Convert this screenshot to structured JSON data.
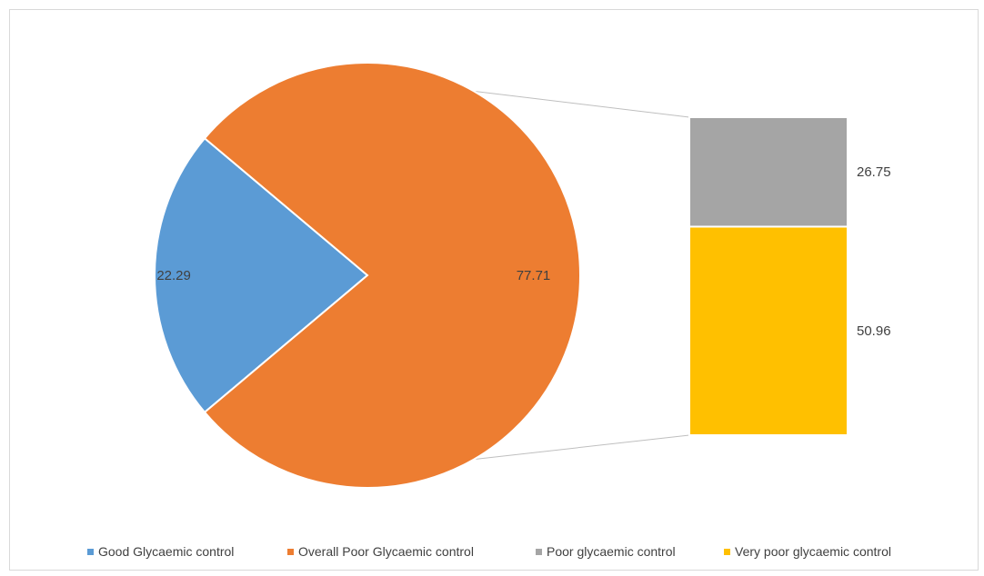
{
  "chart_data": {
    "type": "pie",
    "subtype": "bar-of-pie",
    "title": "",
    "pie": {
      "slices": [
        {
          "name": "Good Glycaemic control",
          "value": 22.29,
          "label": "22.29",
          "color": "#5b9bd5"
        },
        {
          "name": "Overall Poor Glycaemic control",
          "value": 77.71,
          "label": "77.71",
          "color": "#ed7d31"
        }
      ]
    },
    "bar": {
      "breakdown_of": "Overall Poor Glycaemic control",
      "segments": [
        {
          "name": "Poor glycaemic control",
          "value": 26.75,
          "label": "26.75",
          "color": "#a5a5a5"
        },
        {
          "name": "Very poor glycaemic control",
          "value": 50.96,
          "label": "50.96",
          "color": "#ffc000"
        }
      ]
    },
    "legend": {
      "position": "bottom",
      "entries": [
        {
          "name": "Good Glycaemic control",
          "color": "#5b9bd5"
        },
        {
          "name": "Overall Poor Glycaemic control",
          "color": "#ed7d31"
        },
        {
          "name": "Poor glycaemic control",
          "color": "#a5a5a5"
        },
        {
          "name": "Very poor glycaemic control",
          "color": "#ffc000"
        }
      ]
    }
  }
}
